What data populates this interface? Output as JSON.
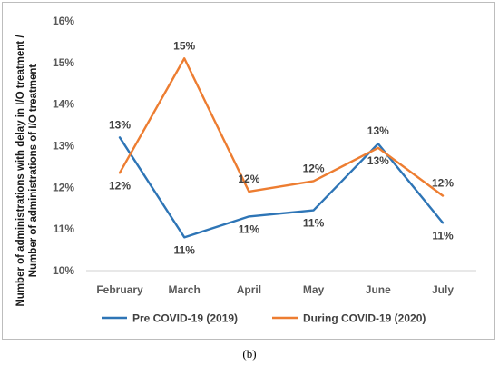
{
  "caption": "(b)",
  "chart_data": {
    "type": "line",
    "categories": [
      "February",
      "March",
      "April",
      "May",
      "June",
      "July"
    ],
    "ylabel": "Number of administrations with delay in I/O treatment / Number of administrations of I/O treatment",
    "ylabel_lines": [
      "Number of administrations with delay in I/O treatment /",
      "Number of administrations of I/O treatment"
    ],
    "ylim": [
      10,
      16
    ],
    "yticks": [
      10,
      11,
      12,
      13,
      14,
      15,
      16
    ],
    "ytick_labels": [
      "10%",
      "11%",
      "12%",
      "13%",
      "14%",
      "15%",
      "16%"
    ],
    "grid": false,
    "legend_position": "bottom",
    "series": [
      {
        "name": "Pre COVID-19 (2019)",
        "color": "#2E75B6",
        "values": [
          13.2,
          10.8,
          11.3,
          11.45,
          13.05,
          11.15
        ],
        "data_labels": [
          "13%",
          "11%",
          "11%",
          "11%",
          "13%",
          "11%"
        ]
      },
      {
        "name": "During COVID-19 (2020)",
        "color": "#ED7D31",
        "values": [
          12.35,
          15.1,
          11.9,
          12.15,
          12.95,
          11.8
        ],
        "data_labels": [
          "12%",
          "15%",
          "12%",
          "12%",
          "13%",
          "12%"
        ]
      }
    ]
  }
}
